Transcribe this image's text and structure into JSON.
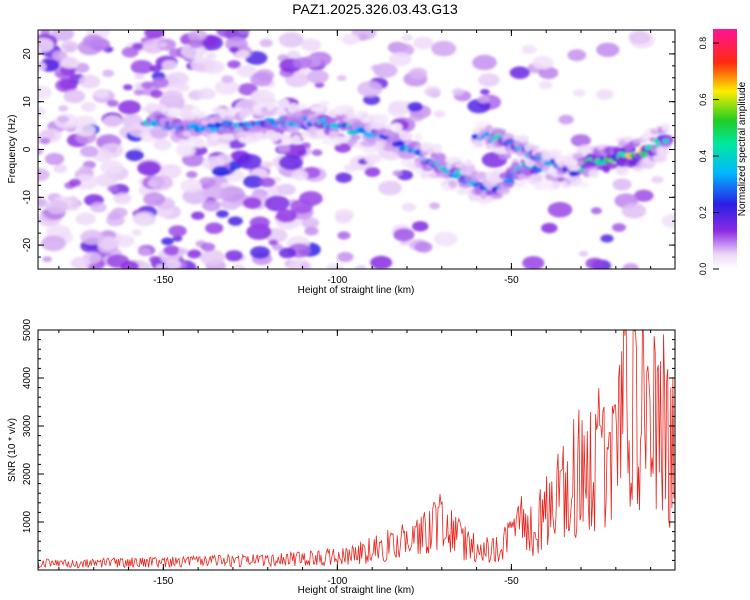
{
  "title": "PAZ1.2025.326.03.43.G13",
  "colors": {
    "snr_line": "#e8261e",
    "axis": "#000000"
  },
  "chart_data": [
    {
      "type": "heatmap",
      "title": "PAZ1.2025.326.03.43.G13",
      "xlabel": "Height of straight line (km)",
      "ylabel": "Frequency (Hz)",
      "xlim": [
        -186,
        -3
      ],
      "ylim": [
        -25,
        25
      ],
      "xticks": [
        -150,
        -100,
        -50
      ],
      "yticks": [
        -20,
        -10,
        0,
        10,
        20
      ],
      "colorbar": {
        "label": "Normalized spectral amplitude",
        "range": [
          0.0,
          0.85
        ],
        "ticks": [
          0.0,
          0.2,
          0.4,
          0.6,
          0.8
        ],
        "colormap": "rainbow (white - purple - blue - cyan - green - yellow - red - magenta)"
      },
      "ridge": {
        "description": "dominant spectral ridge",
        "x": [
          -155,
          -140,
          -120,
          -105,
          -95,
          -85,
          -75,
          -65,
          -55,
          -45,
          -35,
          -25,
          -15,
          -5
        ],
        "y": [
          5.5,
          4.5,
          5.5,
          6.0,
          4.0,
          2.5,
          -2.0,
          -5.5,
          -9.0,
          -3.0,
          -5.5,
          -2.0,
          -1.5,
          2.5
        ],
        "amplitude": [
          0.45,
          0.35,
          0.4,
          0.4,
          0.4,
          0.35,
          0.4,
          0.45,
          0.35,
          0.45,
          0.45,
          0.55,
          0.75,
          0.4
        ]
      },
      "secondary_ridge": {
        "x": [
          -60,
          -52,
          -45,
          -38,
          -32
        ],
        "y": [
          3.0,
          2.0,
          -0.5,
          -3.0,
          -4.5
        ],
        "amplitude": [
          0.3,
          0.5,
          0.4,
          0.35,
          0.3
        ]
      }
    },
    {
      "type": "line",
      "title": "",
      "xlabel": "Height of straight line (km)",
      "ylabel": "SNR (10 * v/v)",
      "xlim": [
        -186,
        -3
      ],
      "ylim": [
        0,
        5000
      ],
      "xticks": [
        -150,
        -100,
        -50
      ],
      "yticks": [
        1000,
        2000,
        3000,
        4000,
        5000
      ],
      "series": [
        {
          "name": "SNR",
          "color": "#e8261e",
          "x": [
            -186,
            -175,
            -165,
            -155,
            -145,
            -135,
            -125,
            -115,
            -105,
            -100,
            -95,
            -90,
            -85,
            -80,
            -75,
            -72,
            -68,
            -65,
            -60,
            -55,
            -50,
            -47,
            -45,
            -40,
            -35,
            -30,
            -25,
            -22,
            -20,
            -17,
            -15,
            -12,
            -10,
            -7,
            -5,
            -3
          ],
          "y": [
            150,
            140,
            160,
            170,
            180,
            200,
            210,
            230,
            260,
            300,
            350,
            450,
            550,
            700,
            800,
            1100,
            900,
            700,
            450,
            500,
            700,
            1100,
            800,
            1300,
            1700,
            2300,
            2600,
            2000,
            2400,
            4200,
            3500,
            3800,
            2900,
            3500,
            2800,
            2600
          ]
        }
      ]
    }
  ]
}
